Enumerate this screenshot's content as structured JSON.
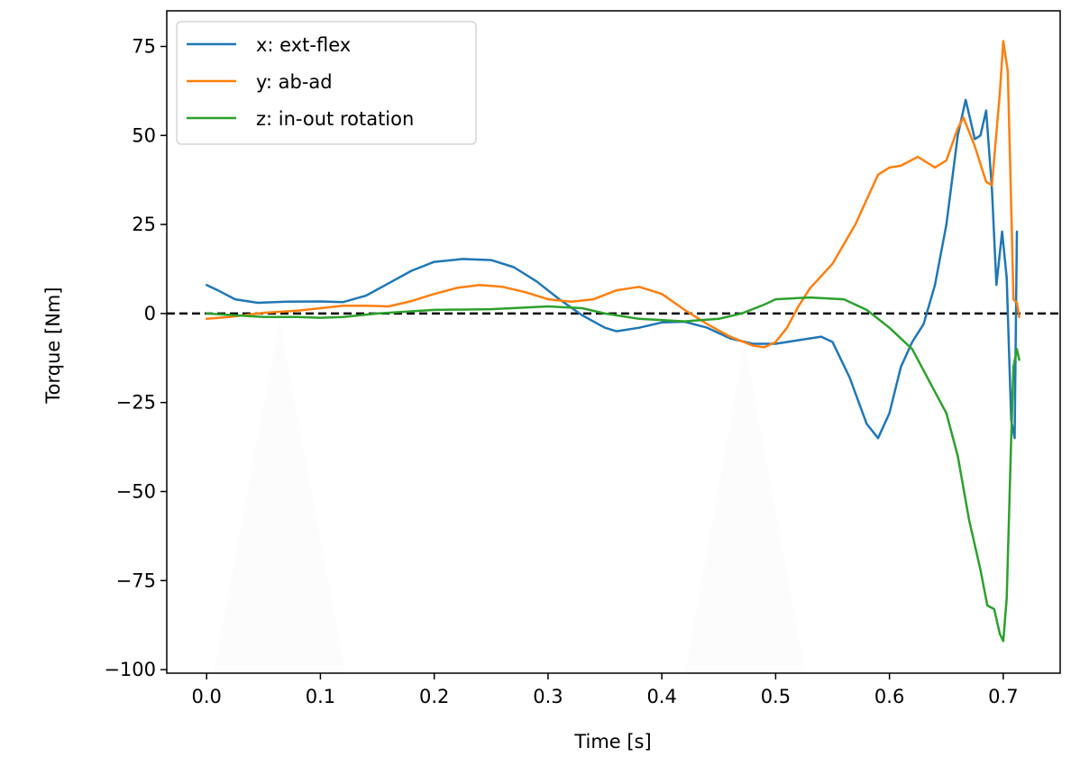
{
  "chart_data": {
    "type": "line",
    "title": "",
    "xlabel": "Time [s]",
    "ylabel": "Torque [Nm]",
    "xlim": [
      -0.035,
      0.75
    ],
    "ylim": [
      -101,
      85
    ],
    "xticks": [
      0.0,
      0.1,
      0.2,
      0.3,
      0.4,
      0.5,
      0.6,
      0.7
    ],
    "xtick_labels": [
      "0.0",
      "0.1",
      "0.2",
      "0.3",
      "0.4",
      "0.5",
      "0.6",
      "0.7"
    ],
    "yticks": [
      75,
      50,
      25,
      0,
      -25,
      -50,
      -75,
      -100
    ],
    "ytick_labels": [
      "75",
      "50",
      "25",
      "0",
      "−25",
      "−50",
      "−75",
      "−100"
    ],
    "grid": false,
    "legend_position": "top-left",
    "reference_line": {
      "y": 0,
      "style": "dashed",
      "color": "#000000"
    },
    "series": [
      {
        "name": "x: ext-flex",
        "color": "#1f77b4",
        "points": [
          [
            0.0,
            8
          ],
          [
            0.01,
            6.5
          ],
          [
            0.025,
            4
          ],
          [
            0.045,
            3
          ],
          [
            0.07,
            3.3
          ],
          [
            0.1,
            3.4
          ],
          [
            0.12,
            3.2
          ],
          [
            0.14,
            5
          ],
          [
            0.16,
            8.5
          ],
          [
            0.18,
            12
          ],
          [
            0.2,
            14.5
          ],
          [
            0.225,
            15.3
          ],
          [
            0.25,
            15
          ],
          [
            0.27,
            13
          ],
          [
            0.29,
            9
          ],
          [
            0.31,
            4
          ],
          [
            0.33,
            -0.5
          ],
          [
            0.35,
            -4
          ],
          [
            0.36,
            -5
          ],
          [
            0.38,
            -4
          ],
          [
            0.4,
            -2.5
          ],
          [
            0.42,
            -2.3
          ],
          [
            0.44,
            -4
          ],
          [
            0.46,
            -7
          ],
          [
            0.48,
            -8.5
          ],
          [
            0.5,
            -8.5
          ],
          [
            0.52,
            -7.5
          ],
          [
            0.54,
            -6.5
          ],
          [
            0.55,
            -8
          ],
          [
            0.565,
            -18
          ],
          [
            0.58,
            -31
          ],
          [
            0.59,
            -35
          ],
          [
            0.6,
            -28
          ],
          [
            0.61,
            -15
          ],
          [
            0.62,
            -8
          ],
          [
            0.63,
            -3
          ],
          [
            0.64,
            8
          ],
          [
            0.65,
            25
          ],
          [
            0.66,
            50
          ],
          [
            0.667,
            60
          ],
          [
            0.675,
            49
          ],
          [
            0.68,
            50
          ],
          [
            0.685,
            57
          ],
          [
            0.69,
            35
          ],
          [
            0.694,
            8
          ],
          [
            0.699,
            23
          ],
          [
            0.703,
            10
          ],
          [
            0.707,
            -30
          ],
          [
            0.71,
            -35
          ],
          [
            0.712,
            23
          ]
        ]
      },
      {
        "name": "y: ab-ad",
        "color": "#ff7f0e",
        "points": [
          [
            0.0,
            -1.5
          ],
          [
            0.02,
            -1
          ],
          [
            0.05,
            0.2
          ],
          [
            0.08,
            0.8
          ],
          [
            0.1,
            1.5
          ],
          [
            0.12,
            2.2
          ],
          [
            0.14,
            2.2
          ],
          [
            0.16,
            2
          ],
          [
            0.18,
            3.5
          ],
          [
            0.2,
            5.5
          ],
          [
            0.22,
            7.2
          ],
          [
            0.24,
            8
          ],
          [
            0.26,
            7.5
          ],
          [
            0.28,
            6
          ],
          [
            0.3,
            4
          ],
          [
            0.32,
            3.3
          ],
          [
            0.34,
            4
          ],
          [
            0.36,
            6.5
          ],
          [
            0.38,
            7.5
          ],
          [
            0.4,
            5.5
          ],
          [
            0.42,
            1
          ],
          [
            0.44,
            -3
          ],
          [
            0.46,
            -6.5
          ],
          [
            0.48,
            -9
          ],
          [
            0.49,
            -9.5
          ],
          [
            0.5,
            -8
          ],
          [
            0.51,
            -4
          ],
          [
            0.52,
            2
          ],
          [
            0.53,
            7
          ],
          [
            0.55,
            14
          ],
          [
            0.57,
            25
          ],
          [
            0.59,
            39
          ],
          [
            0.6,
            41
          ],
          [
            0.61,
            41.5
          ],
          [
            0.625,
            44
          ],
          [
            0.64,
            41
          ],
          [
            0.65,
            43
          ],
          [
            0.66,
            52
          ],
          [
            0.665,
            55
          ],
          [
            0.675,
            47
          ],
          [
            0.685,
            37
          ],
          [
            0.69,
            36
          ],
          [
            0.697,
            62
          ],
          [
            0.7,
            76.5
          ],
          [
            0.704,
            68
          ],
          [
            0.707,
            30
          ],
          [
            0.709,
            4
          ],
          [
            0.712,
            3
          ],
          [
            0.714,
            -1
          ]
        ]
      },
      {
        "name": "z: in-out rotation",
        "color": "#2ca02c",
        "points": [
          [
            0.0,
            0
          ],
          [
            0.05,
            -1
          ],
          [
            0.08,
            -1
          ],
          [
            0.1,
            -1.2
          ],
          [
            0.12,
            -1
          ],
          [
            0.15,
            0
          ],
          [
            0.2,
            1
          ],
          [
            0.25,
            1.2
          ],
          [
            0.3,
            2
          ],
          [
            0.33,
            1.5
          ],
          [
            0.35,
            0
          ],
          [
            0.38,
            -1.5
          ],
          [
            0.42,
            -2.2
          ],
          [
            0.45,
            -1.5
          ],
          [
            0.47,
            0
          ],
          [
            0.49,
            2.5
          ],
          [
            0.5,
            4
          ],
          [
            0.53,
            4.5
          ],
          [
            0.56,
            4
          ],
          [
            0.58,
            1
          ],
          [
            0.6,
            -4
          ],
          [
            0.62,
            -10
          ],
          [
            0.64,
            -22
          ],
          [
            0.65,
            -28
          ],
          [
            0.66,
            -40
          ],
          [
            0.67,
            -58
          ],
          [
            0.68,
            -72
          ],
          [
            0.686,
            -82
          ],
          [
            0.692,
            -83
          ],
          [
            0.697,
            -90
          ],
          [
            0.7,
            -92
          ],
          [
            0.703,
            -80
          ],
          [
            0.707,
            -35
          ],
          [
            0.709,
            -15
          ],
          [
            0.712,
            -10
          ],
          [
            0.714,
            -13
          ]
        ]
      }
    ]
  }
}
